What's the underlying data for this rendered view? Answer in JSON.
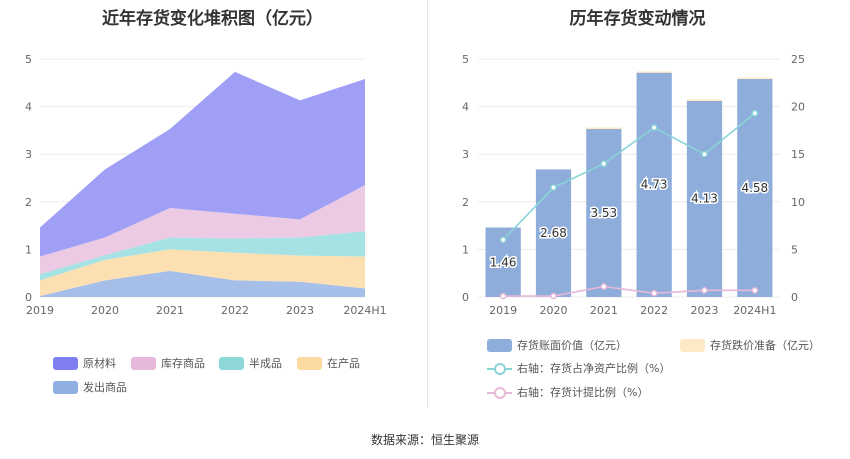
{
  "source": "数据来源：恒生聚源",
  "chart_data": [
    {
      "type": "area",
      "stacked": true,
      "title": "近年存货变化堆积图（亿元）",
      "categories": [
        "2019",
        "2020",
        "2021",
        "2022",
        "2023",
        "2024H1"
      ],
      "ylim": [
        0,
        5
      ],
      "yticks": [
        "0",
        "1",
        "2",
        "3",
        "4",
        "5"
      ],
      "series": [
        {
          "name": "发出商品",
          "color": "#a5bfe8",
          "values": [
            0.02,
            0.35,
            0.55,
            0.35,
            0.32,
            0.18
          ]
        },
        {
          "name": "在产品",
          "color": "#fde0b1",
          "values": [
            0.33,
            0.43,
            0.45,
            0.58,
            0.55,
            0.67
          ]
        },
        {
          "name": "半成品",
          "color": "#a6e2e3",
          "values": [
            0.13,
            0.1,
            0.25,
            0.3,
            0.38,
            0.53
          ]
        },
        {
          "name": "库存商品",
          "color": "#eccae3",
          "values": [
            0.37,
            0.37,
            0.62,
            0.52,
            0.38,
            0.97
          ]
        },
        {
          "name": "原材料",
          "color": "#9f9ff6",
          "values": [
            0.61,
            1.43,
            1.66,
            2.98,
            2.5,
            2.23
          ]
        }
      ],
      "legend": [
        {
          "name": "原材料",
          "color": "#7f7ef3"
        },
        {
          "name": "库存商品",
          "color": "#e6b8d9"
        },
        {
          "name": "半成品",
          "color": "#8fd8da"
        },
        {
          "name": "在产品",
          "color": "#fcd9a1"
        },
        {
          "name": "发出商品",
          "color": "#8fb0e0"
        }
      ]
    },
    {
      "type": "bar",
      "title": "历年存货变动情况",
      "categories": [
        "2019",
        "2020",
        "2021",
        "2022",
        "2023",
        "2024H1"
      ],
      "ylim": [
        0,
        5
      ],
      "yticks": [
        "0",
        "1",
        "2",
        "3",
        "4",
        "5"
      ],
      "y2lim": [
        0,
        25
      ],
      "y2ticks": [
        "0",
        "5",
        "10",
        "15",
        "20",
        "25"
      ],
      "series": [
        {
          "name": "存货账面价值（亿元）",
          "type": "bar",
          "color": "#8eadda",
          "values": [
            1.46,
            2.68,
            3.53,
            4.73,
            4.13,
            4.58
          ],
          "labels": [
            "1.46",
            "2.68",
            "3.53",
            "4.73",
            "4.13",
            "4.58"
          ]
        },
        {
          "name": "存货跌价准备（亿元）",
          "type": "bar",
          "color": "#fde9c6",
          "values": [
            0,
            0,
            0.03,
            0.01,
            0.02,
            0.03
          ]
        },
        {
          "name": "右轴：存货占净资产比例（%）",
          "type": "line",
          "axis": "right",
          "color": "#8ad4d8",
          "values": [
            6.0,
            11.5,
            14.0,
            17.8,
            15.0,
            19.3
          ]
        },
        {
          "name": "右轴：存货计提比例（%）",
          "type": "line",
          "axis": "right",
          "color": "#e6b8d9",
          "values": [
            0.1,
            0.1,
            1.1,
            0.4,
            0.7,
            0.7
          ]
        }
      ]
    }
  ]
}
